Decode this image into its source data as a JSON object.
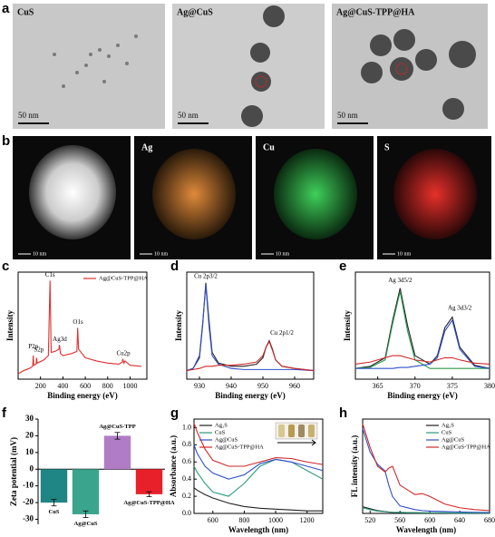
{
  "panels": {
    "a": {
      "letter": "a",
      "images": [
        {
          "label": "CuS",
          "scale": "50 nm"
        },
        {
          "label": "Ag@CuS",
          "scale": "50 nm"
        },
        {
          "label": "Ag@CuS-TPP@HA",
          "scale": "50 nm"
        }
      ]
    },
    "b": {
      "letter": "b",
      "images": [
        {
          "scale": "10 nm"
        },
        {
          "label": "Ag",
          "scale": "10 nm"
        },
        {
          "label": "Cu",
          "scale": "10 nm"
        },
        {
          "label": "S",
          "scale": "10 nm"
        }
      ]
    }
  },
  "chart_data": [
    {
      "type": "line",
      "panel": "c",
      "xlabel": "Binding energy (eV)",
      "ylabel": "Intensity",
      "legend": "upper right",
      "xlim": [
        0,
        1150
      ],
      "ylim": [
        0,
        100
      ],
      "xticks": [
        200,
        400,
        600,
        800,
        1000
      ],
      "x": [
        0,
        50,
        100,
        130,
        135,
        140,
        160,
        165,
        170,
        230,
        270,
        285,
        295,
        330,
        365,
        368,
        372,
        378,
        400,
        480,
        525,
        532,
        540,
        600,
        700,
        800,
        900,
        930,
        935,
        945,
        955,
        1000,
        1100
      ],
      "series": [
        {
          "name": "Ag@CuS-TPP@HA",
          "color": "#e03030",
          "values": [
            5,
            8,
            10,
            12,
            22,
            13,
            14,
            20,
            15,
            18,
            22,
            92,
            25,
            26,
            28,
            32,
            30,
            24,
            22,
            24,
            26,
            48,
            28,
            20,
            17,
            15,
            14,
            16,
            19,
            15,
            17,
            13,
            12
          ]
        }
      ],
      "annotations": [
        "C1s",
        "O1s",
        "Ag3d",
        "S2p",
        "P2p",
        "Cu2p"
      ]
    },
    {
      "type": "line",
      "panel": "d",
      "xlabel": "Binding  energy (eV)",
      "ylabel": "Intensity",
      "xlim": [
        926,
        966
      ],
      "ylim": [
        0,
        100
      ],
      "xticks": [
        930,
        940,
        950,
        960
      ],
      "x": [
        926,
        928,
        930,
        931,
        932,
        933,
        934,
        936,
        940,
        944,
        948,
        950,
        951,
        952,
        953,
        954,
        956,
        960,
        966
      ],
      "series": [
        {
          "color": "#222222",
          "values": [
            8,
            10,
            20,
            50,
            90,
            55,
            25,
            15,
            12,
            12,
            14,
            20,
            30,
            36,
            28,
            18,
            12,
            10,
            8
          ]
        },
        {
          "color": "#3050c8",
          "values": [
            8,
            10,
            22,
            52,
            88,
            50,
            22,
            14,
            10,
            9,
            9,
            9,
            9,
            9,
            9,
            9,
            9,
            9,
            8
          ]
        },
        {
          "color": "#d02828",
          "values": [
            8,
            9,
            10,
            11,
            12,
            12,
            12,
            13,
            13,
            14,
            16,
            22,
            30,
            35,
            27,
            18,
            12,
            10,
            8
          ]
        }
      ],
      "annotations": [
        "Cu 2p3/2",
        "Cu 2p1/2"
      ]
    },
    {
      "type": "line",
      "panel": "e",
      "xlabel": "Binding  energy (eV)",
      "ylabel": "Intensity",
      "xlim": [
        362,
        380
      ],
      "ylim": [
        0,
        100
      ],
      "xticks": [
        365,
        370,
        375,
        380
      ],
      "x": [
        362,
        364,
        366,
        367,
        368,
        369,
        370,
        372,
        373,
        374,
        375,
        376,
        378,
        380
      ],
      "series": [
        {
          "color": "#222222",
          "values": [
            10,
            12,
            20,
            55,
            85,
            50,
            22,
            14,
            22,
            48,
            58,
            30,
            13,
            10
          ]
        },
        {
          "color": "#2a9a4a",
          "values": [
            10,
            11,
            18,
            52,
            82,
            45,
            18,
            10,
            10,
            10,
            10,
            10,
            10,
            10
          ]
        },
        {
          "color": "#3050c8",
          "values": [
            10,
            10,
            10,
            10,
            11,
            11,
            12,
            14,
            20,
            45,
            55,
            28,
            12,
            10
          ]
        },
        {
          "color": "#d02828",
          "values": [
            14,
            16,
            20,
            22,
            22,
            20,
            18,
            16,
            18,
            20,
            20,
            18,
            15,
            14
          ]
        }
      ],
      "annotations": [
        "Ag 3d5/2",
        "Ag 3d3/2"
      ]
    },
    {
      "type": "bar",
      "panel": "f",
      "ylabel": "Zeta potential (mV)",
      "categories": [
        "CuS",
        "Ag@CuS",
        "Ag@CuS-TPP",
        "Ag@CuS-TPP@HA"
      ],
      "values": [
        -20,
        -27,
        20,
        -15
      ],
      "errors": [
        2,
        2,
        2,
        1.5
      ],
      "colors": [
        "#1f8585",
        "#3aa58c",
        "#b07cc6",
        "#e8202a"
      ],
      "ylim": [
        -33,
        30
      ],
      "yticks": [
        -30,
        -20,
        -10,
        0,
        10,
        20,
        30
      ]
    },
    {
      "type": "line",
      "panel": "g",
      "xlabel": "Wavelength (nm)",
      "ylabel": "Absorbance (a.u.)",
      "legend": "upper left",
      "xlim": [
        480,
        1300
      ],
      "ylim": [
        0,
        1.1
      ],
      "xticks": [
        600,
        800,
        1000,
        1200
      ],
      "yticks": [
        {
          "value": 0,
          "label": "0.0"
        },
        0.2,
        0.4,
        0.6,
        0.8,
        {
          "value": 1,
          "label": "1.0"
        }
      ],
      "x": [
        480,
        500,
        550,
        600,
        700,
        800,
        900,
        1000,
        1100,
        1200,
        1300
      ],
      "series": [
        {
          "name": "Ag₂S",
          "color": "#222222",
          "values": [
            0.3,
            0.27,
            0.22,
            0.18,
            0.12,
            0.08,
            0.06,
            0.05,
            0.04,
            0.03,
            0.03
          ]
        },
        {
          "name": "CuS",
          "color": "#2a9a7a",
          "values": [
            0.55,
            0.48,
            0.35,
            0.25,
            0.2,
            0.35,
            0.55,
            0.63,
            0.6,
            0.5,
            0.4
          ]
        },
        {
          "name": "Ag@CuS",
          "color": "#3050c8",
          "values": [
            0.8,
            0.7,
            0.55,
            0.47,
            0.4,
            0.45,
            0.58,
            0.63,
            0.6,
            0.55,
            0.5
          ]
        },
        {
          "name": "Ag@CuS-TPP@HA",
          "color": "#d02828",
          "values": [
            1.05,
            0.95,
            0.75,
            0.62,
            0.55,
            0.55,
            0.6,
            0.65,
            0.64,
            0.6,
            0.57
          ]
        }
      ]
    },
    {
      "type": "line",
      "panel": "h",
      "xlabel": "Wavelength (nm)",
      "ylabel": "FL intensity (a.u.)",
      "legend": "upper right",
      "xlim": [
        510,
        680
      ],
      "ylim": [
        0,
        1000
      ],
      "xticks": [
        520,
        560,
        600,
        640,
        680
      ],
      "x": [
        510,
        520,
        530,
        540,
        545,
        550,
        560,
        580,
        590,
        600,
        620,
        640,
        660,
        680
      ],
      "series": [
        {
          "name": "Ag₂S",
          "color": "#222222",
          "values": [
            70,
            50,
            30,
            20,
            15,
            12,
            10,
            8,
            7,
            6,
            5,
            4,
            4,
            3
          ]
        },
        {
          "name": "CuS",
          "color": "#2a9a7a",
          "values": [
            60,
            40,
            25,
            18,
            14,
            12,
            10,
            8,
            7,
            6,
            5,
            4,
            4,
            3
          ]
        },
        {
          "name": "Ag@CuS",
          "color": "#3050c8",
          "values": [
            900,
            650,
            520,
            450,
            300,
            180,
            80,
            40,
            30,
            25,
            20,
            15,
            12,
            10
          ]
        },
        {
          "name": "Ag@CuS-TPP@HA",
          "color": "#d02828",
          "values": [
            950,
            700,
            500,
            440,
            480,
            500,
            300,
            200,
            210,
            180,
            100,
            60,
            40,
            30
          ]
        }
      ]
    }
  ]
}
